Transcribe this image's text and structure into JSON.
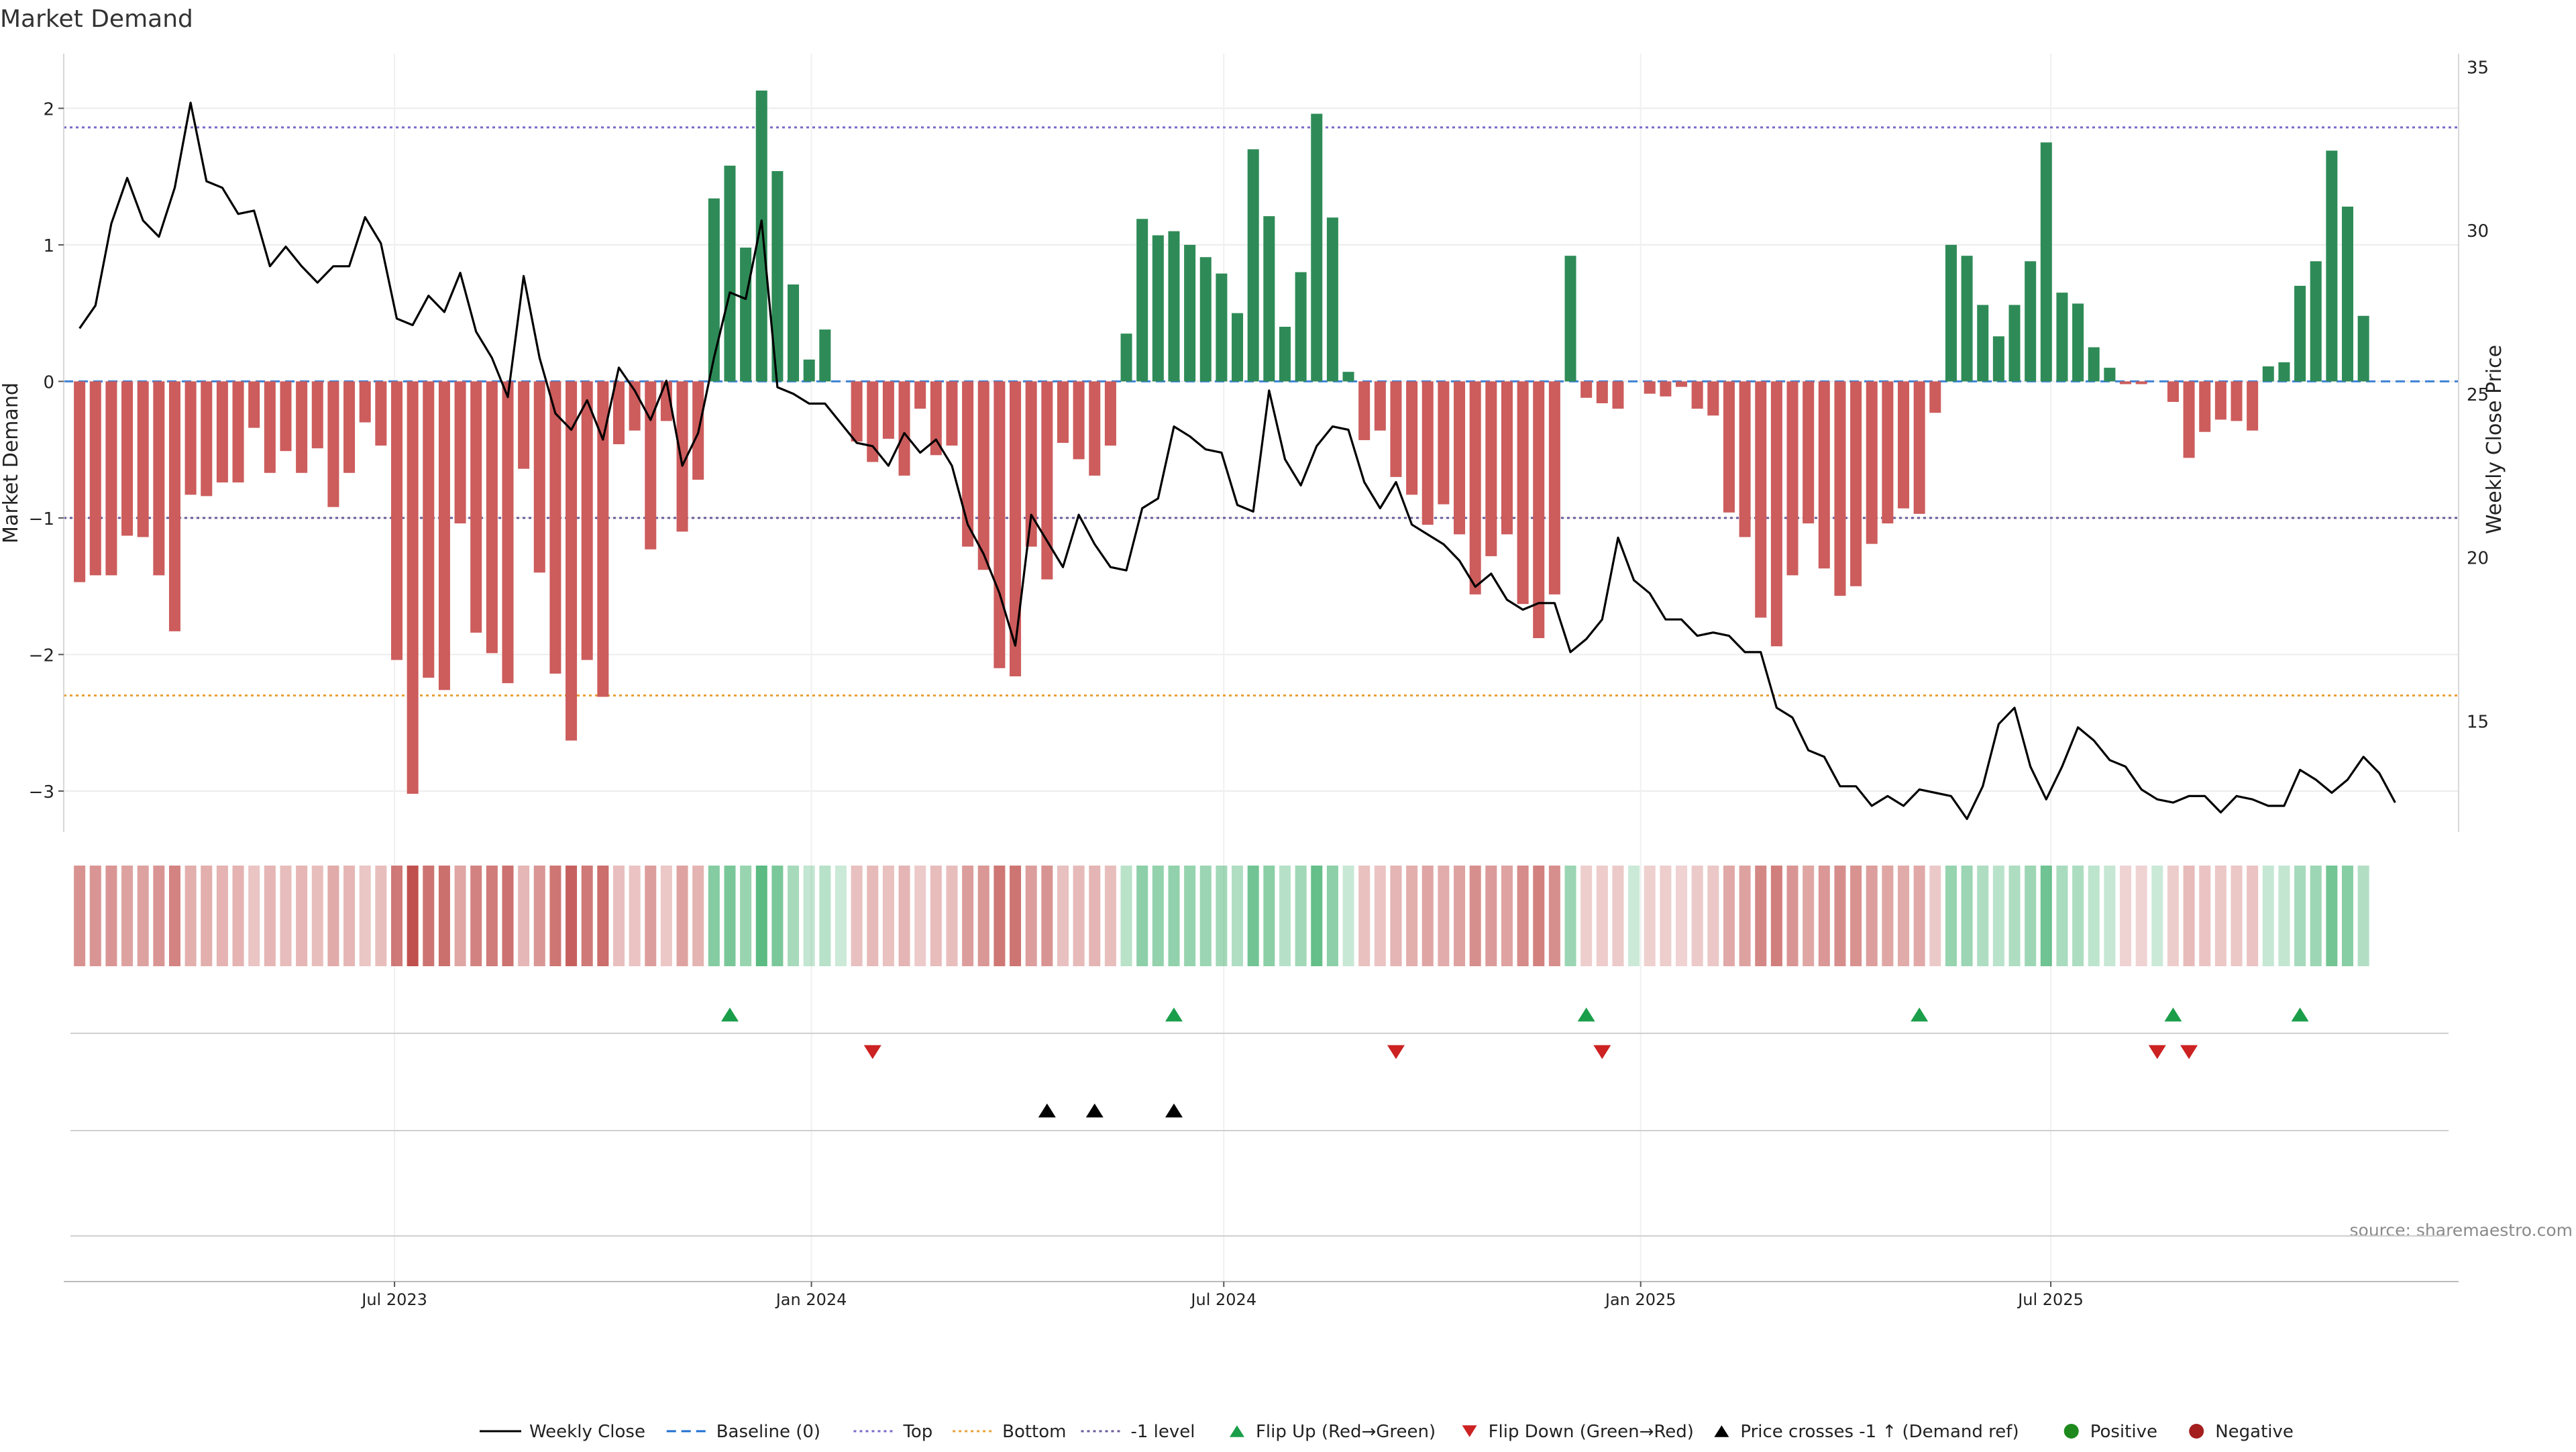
{
  "chart_data": {
    "type": "bar",
    "title": "Market Demand",
    "ylabel": "Market Demand",
    "y2label": "Weekly Close Price",
    "source": "source: sharemaestro.com",
    "ylim": [
      -3.3,
      2.4
    ],
    "y2lim": [
      11.6,
      35.4
    ],
    "yticks": [
      2,
      1,
      0,
      -1,
      -2,
      -3
    ],
    "y2ticks": [
      35,
      30,
      25,
      20,
      15
    ],
    "x_start": "2023-02-05",
    "x_end": "2025-12-28",
    "xticks": [
      {
        "date": "2023-07-01",
        "label": "Jul 2023"
      },
      {
        "date": "2024-01-01",
        "label": "Jan 2024"
      },
      {
        "date": "2024-07-01",
        "label": "Jul 2024"
      },
      {
        "date": "2025-01-01",
        "label": "Jan 2025"
      },
      {
        "date": "2025-07-01",
        "label": "Jul 2025"
      }
    ],
    "grid": true,
    "legend_placement": "bottom-center",
    "colors": {
      "positive": "#2e8b57",
      "negative": "#cd5c5c",
      "flip_up": "#1a9e4a",
      "flip_down": "#cc2222",
      "price_line": "#000000",
      "baseline": "#1f6fd1",
      "top": "#7b68c8",
      "bottom": "#e8a035",
      "minus1": "#6a5a9a",
      "positive_dot": "#1e8a1e",
      "negative_dot": "#a51f1f"
    },
    "levels": {
      "top": 1.86,
      "bottom": -2.3,
      "minus1": -1
    },
    "first_week": "2023-02-12",
    "demand": [
      -1.47,
      -1.42,
      -1.42,
      -1.13,
      -1.14,
      -1.42,
      -1.83,
      -0.83,
      -0.84,
      -0.74,
      -0.74,
      -0.34,
      -0.67,
      -0.51,
      -0.67,
      -0.49,
      -0.92,
      -0.67,
      -0.3,
      -0.47,
      -2.04,
      -3.02,
      -2.17,
      -2.26,
      -1.04,
      -1.84,
      -1.99,
      -2.21,
      -0.64,
      -1.4,
      -2.14,
      -2.63,
      -2.04,
      -2.31,
      -0.46,
      -0.36,
      -1.23,
      -0.29,
      -1.1,
      -0.72,
      1.34,
      1.58,
      0.98,
      2.13,
      1.54,
      0.71,
      0.16,
      0.38,
      0,
      -0.44,
      -0.59,
      -0.42,
      -0.69,
      -0.2,
      -0.54,
      -0.47,
      -1.21,
      -1.38,
      -2.1,
      -2.16,
      -1.21,
      -1.45,
      -0.45,
      -0.57,
      -0.69,
      -0.47,
      0.35,
      1.19,
      1.07,
      1.1,
      1.0,
      0.91,
      0.79,
      0.5,
      1.7,
      1.21,
      0.4,
      0.8,
      1.96,
      1.2,
      0.07,
      -0.43,
      -0.36,
      -0.7,
      -0.83,
      -1.05,
      -0.9,
      -1.12,
      -1.56,
      -1.28,
      -1.12,
      -1.63,
      -1.88,
      -1.56,
      0.92,
      -0.12,
      -0.16,
      -0.2,
      0,
      -0.09,
      -0.11,
      -0.04,
      -0.2,
      -0.25,
      -0.96,
      -1.14,
      -1.73,
      -1.94,
      -1.42,
      -1.04,
      -1.37,
      -1.57,
      -1.5,
      -1.19,
      -1.04,
      -0.93,
      -0.97,
      -0.23,
      1.0,
      0.92,
      0.56,
      0.33,
      0.56,
      0.88,
      1.75,
      0.65,
      0.57,
      0.25,
      0.1,
      -0.02,
      -0.02,
      0,
      -0.15,
      -0.56,
      -0.37,
      -0.28,
      -0.29,
      -0.36,
      0.11,
      0.14,
      0.7,
      0.88,
      1.69,
      1.28,
      0.48
    ],
    "close": [
      27.0,
      27.7,
      30.2,
      31.6,
      30.3,
      29.8,
      31.3,
      33.9,
      31.5,
      31.3,
      30.5,
      30.6,
      28.9,
      29.5,
      28.9,
      28.4,
      28.9,
      28.9,
      30.4,
      29.6,
      27.3,
      27.1,
      28.0,
      27.5,
      28.7,
      26.9,
      26.1,
      24.9,
      28.6,
      26.1,
      24.4,
      23.9,
      24.8,
      23.6,
      25.8,
      25.1,
      24.2,
      25.4,
      22.8,
      23.8,
      26.1,
      28.1,
      27.9,
      30.3,
      25.2,
      25.0,
      24.7,
      24.7,
      24.1,
      23.5,
      23.4,
      22.8,
      23.8,
      23.2,
      23.6,
      22.8,
      21.0,
      20.1,
      18.9,
      17.3,
      21.3,
      20.5,
      19.7,
      21.3,
      20.4,
      19.7,
      19.6,
      21.5,
      21.8,
      24.0,
      23.7,
      23.3,
      23.2,
      21.6,
      21.4,
      25.1,
      23.0,
      22.2,
      23.4,
      24.0,
      23.9,
      22.3,
      21.5,
      22.3,
      21.0,
      20.7,
      20.4,
      19.9,
      19.1,
      19.5,
      18.7,
      18.4,
      18.6,
      18.6,
      17.1,
      17.5,
      18.1,
      20.6,
      19.3,
      18.9,
      18.1,
      18.1,
      17.6,
      17.7,
      17.6,
      17.1,
      17.1,
      15.4,
      15.1,
      14.1,
      13.9,
      13.0,
      13.0,
      12.4,
      12.7,
      12.4,
      12.9,
      12.8,
      12.7,
      12.0,
      13.0,
      14.9,
      15.4,
      13.6,
      12.6,
      13.6,
      14.8,
      14.4,
      13.8,
      13.6,
      12.9,
      12.6,
      12.5,
      12.7,
      12.7,
      12.2,
      12.7,
      12.6,
      12.4,
      12.4,
      13.5,
      13.2,
      12.8,
      13.2,
      13.9,
      13.4,
      12.5
    ],
    "markers": {
      "flip_up": [
        "2023-11-26",
        "2024-06-09",
        "2024-12-08",
        "2025-05-04",
        "2025-08-24",
        "2025-10-19"
      ],
      "flip_down": [
        "2024-01-28",
        "2024-09-15",
        "2024-12-15",
        "2025-08-17",
        "2025-08-31"
      ],
      "price_crosses_minus1_up": [
        "2024-04-14",
        "2024-05-05",
        "2024-06-09"
      ]
    },
    "legend": [
      {
        "key": "weekly_close",
        "label": "Weekly Close",
        "symbol": "line-solid",
        "color": "#000000"
      },
      {
        "key": "baseline",
        "label": "Baseline (0)",
        "symbol": "line-dash",
        "color": "#1f6fd1"
      },
      {
        "key": "top",
        "label": "Top",
        "symbol": "line-dot",
        "color": "#7b68c8"
      },
      {
        "key": "bottom",
        "label": "Bottom",
        "symbol": "line-dot",
        "color": "#e8a035"
      },
      {
        "key": "minus1",
        "label": "-1 level",
        "symbol": "line-dot",
        "color": "#6a5a9a"
      },
      {
        "key": "flip_up",
        "label": "Flip Up (Red→Green)",
        "symbol": "triangle-up",
        "color": "#1a9e4a"
      },
      {
        "key": "flip_down",
        "label": "Flip Down (Green→Red)",
        "symbol": "triangle-down",
        "color": "#cc2222"
      },
      {
        "key": "price_cross",
        "label": "Price crosses -1 ↑ (Demand ref)",
        "symbol": "triangle-up",
        "color": "#000000"
      },
      {
        "key": "positive",
        "label": "Positive",
        "symbol": "circle",
        "color": "#1e8a1e"
      },
      {
        "key": "negative",
        "label": "Negative",
        "symbol": "circle",
        "color": "#a51f1f"
      }
    ]
  }
}
